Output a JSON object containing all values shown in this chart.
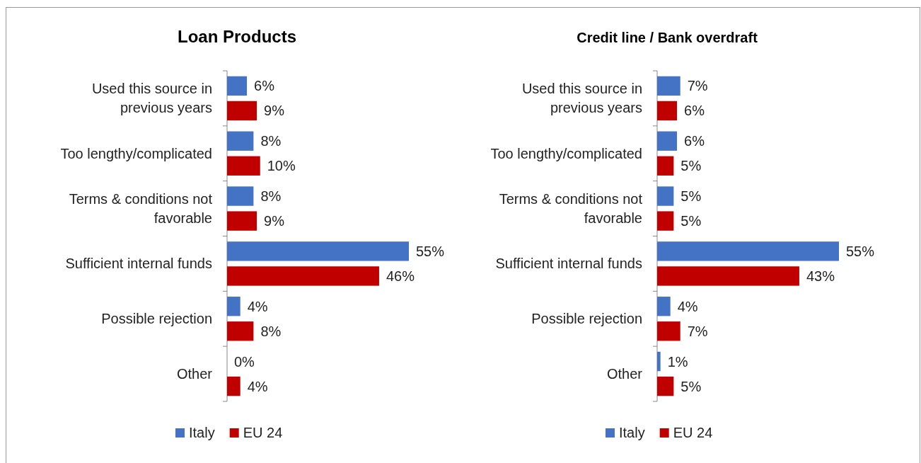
{
  "chart_data": [
    {
      "type": "bar",
      "orientation": "horizontal",
      "title": "Loan Products",
      "categories": [
        "Used this source in previous years",
        "Too lengthy/complicated",
        "Terms & conditions not favorable",
        "Sufficient internal funds",
        "Possible rejection",
        "Other"
      ],
      "series": [
        {
          "name": "Italy",
          "color": "#4472c4",
          "values": [
            6,
            8,
            8,
            55,
            4,
            0
          ],
          "value_labels": [
            "6%",
            "8%",
            "8%",
            "55%",
            "4%",
            "0%"
          ]
        },
        {
          "name": "EU 24",
          "color": "#c00000",
          "values": [
            9,
            10,
            9,
            46,
            8,
            4
          ],
          "value_labels": [
            "9%",
            "10%",
            "9%",
            "46%",
            "8%",
            "4%"
          ]
        }
      ],
      "legend": "bottom"
    },
    {
      "type": "bar",
      "orientation": "horizontal",
      "title": "Credit line / Bank overdraft",
      "categories": [
        "Used this source in previous years",
        "Too lengthy/complicated",
        "Terms & conditions not favorable",
        "Sufficient internal funds",
        "Possible rejection",
        "Other"
      ],
      "series": [
        {
          "name": "Italy",
          "color": "#4472c4",
          "values": [
            7,
            6,
            5,
            55,
            4,
            1
          ],
          "value_labels": [
            "7%",
            "6%",
            "5%",
            "55%",
            "4%",
            "1%"
          ]
        },
        {
          "name": "EU 24",
          "color": "#c00000",
          "values": [
            6,
            5,
            5,
            43,
            7,
            5
          ],
          "value_labels": [
            "6%",
            "5%",
            "5%",
            "43%",
            "7%",
            "5%"
          ]
        }
      ],
      "legend": "bottom"
    }
  ]
}
